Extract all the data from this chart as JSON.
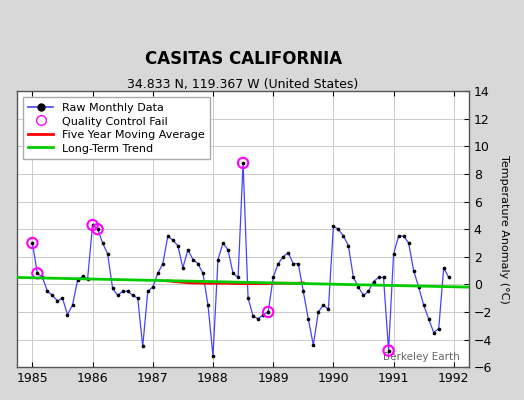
{
  "title": "CASITAS CALIFORNIA",
  "subtitle": "34.833 N, 119.367 W (United States)",
  "ylabel": "Temperature Anomaly (°C)",
  "watermark": "Berkeley Earth",
  "xlim": [
    1984.75,
    1992.25
  ],
  "ylim": [
    -6,
    14
  ],
  "yticks": [
    -6,
    -4,
    -2,
    0,
    2,
    4,
    6,
    8,
    10,
    12,
    14
  ],
  "xticks": [
    1985,
    1986,
    1987,
    1988,
    1989,
    1990,
    1991,
    1992
  ],
  "background_color": "#d8d8d8",
  "plot_bg_color": "#ffffff",
  "raw_color": "#4444ff",
  "dot_color": "#000000",
  "qc_color": "#ff00ff",
  "moving_avg_color": "#ff0000",
  "trend_color": "#00cc00",
  "raw_x": [
    1985.0,
    1985.083,
    1985.167,
    1985.25,
    1985.333,
    1985.417,
    1985.5,
    1985.583,
    1985.667,
    1985.75,
    1985.833,
    1985.917,
    1986.0,
    1986.083,
    1986.167,
    1986.25,
    1986.333,
    1986.417,
    1986.5,
    1986.583,
    1986.667,
    1986.75,
    1986.833,
    1986.917,
    1987.0,
    1987.083,
    1987.167,
    1987.25,
    1987.333,
    1987.417,
    1987.5,
    1987.583,
    1987.667,
    1987.75,
    1987.833,
    1987.917,
    1988.0,
    1988.083,
    1988.167,
    1988.25,
    1988.333,
    1988.417,
    1988.5,
    1988.583,
    1988.667,
    1988.75,
    1988.833,
    1988.917,
    1989.0,
    1989.083,
    1989.167,
    1989.25,
    1989.333,
    1989.417,
    1989.5,
    1989.583,
    1989.667,
    1989.75,
    1989.833,
    1989.917,
    1990.0,
    1990.083,
    1990.167,
    1990.25,
    1990.333,
    1990.417,
    1990.5,
    1990.583,
    1990.667,
    1990.75,
    1990.833,
    1990.917,
    1991.0,
    1991.083,
    1991.167,
    1991.25,
    1991.333,
    1991.417,
    1991.5,
    1991.583,
    1991.667,
    1991.75,
    1991.833,
    1991.917
  ],
  "raw_y": [
    3.0,
    0.8,
    0.5,
    -0.5,
    -0.8,
    -1.2,
    -1.0,
    -2.2,
    -1.5,
    0.3,
    0.6,
    0.4,
    4.3,
    4.0,
    3.0,
    2.2,
    -0.3,
    -0.8,
    -0.5,
    -0.5,
    -0.8,
    -1.0,
    -4.5,
    -0.5,
    -0.2,
    0.8,
    1.5,
    3.5,
    3.2,
    2.8,
    1.2,
    2.5,
    1.8,
    1.5,
    0.8,
    -1.5,
    -5.2,
    1.8,
    3.0,
    2.5,
    0.8,
    0.5,
    8.8,
    -1.0,
    -2.3,
    -2.5,
    -2.2,
    -2.0,
    0.5,
    1.5,
    2.0,
    2.3,
    1.5,
    1.5,
    -0.5,
    -2.5,
    -4.4,
    -2.0,
    -1.5,
    -1.8,
    4.2,
    4.0,
    3.5,
    2.8,
    0.5,
    -0.2,
    -0.8,
    -0.5,
    0.2,
    0.5,
    0.5,
    -4.8,
    2.2,
    3.5,
    3.5,
    3.0,
    1.0,
    -0.2,
    -1.5,
    -2.5,
    -3.5,
    -3.2,
    1.2,
    0.5
  ],
  "qc_fail_x": [
    1985.0,
    1985.083,
    1986.0,
    1986.083,
    1988.5,
    1988.917,
    1990.917
  ],
  "qc_fail_y": [
    3.0,
    0.8,
    4.3,
    4.0,
    8.8,
    -2.0,
    -4.8
  ],
  "moving_avg_x": [
    1987.25,
    1987.333,
    1987.417,
    1987.5,
    1987.583,
    1987.667,
    1987.75,
    1987.833,
    1987.917,
    1988.0,
    1988.083,
    1988.167,
    1988.25,
    1988.333,
    1988.417,
    1988.5,
    1988.583,
    1988.667,
    1988.75,
    1988.833,
    1988.917,
    1989.0,
    1989.083,
    1989.167,
    1989.25,
    1989.333,
    1989.417,
    1989.5
  ],
  "moving_avg_y": [
    0.25,
    0.22,
    0.18,
    0.15,
    0.12,
    0.1,
    0.1,
    0.08,
    0.08,
    0.08,
    0.08,
    0.08,
    0.08,
    0.06,
    0.06,
    0.05,
    0.05,
    0.05,
    0.05,
    0.05,
    0.05,
    0.08,
    0.08,
    0.08,
    0.08,
    0.08,
    0.08,
    0.1
  ],
  "trend_x": [
    1984.75,
    1992.25
  ],
  "trend_y": [
    0.5,
    -0.2
  ]
}
